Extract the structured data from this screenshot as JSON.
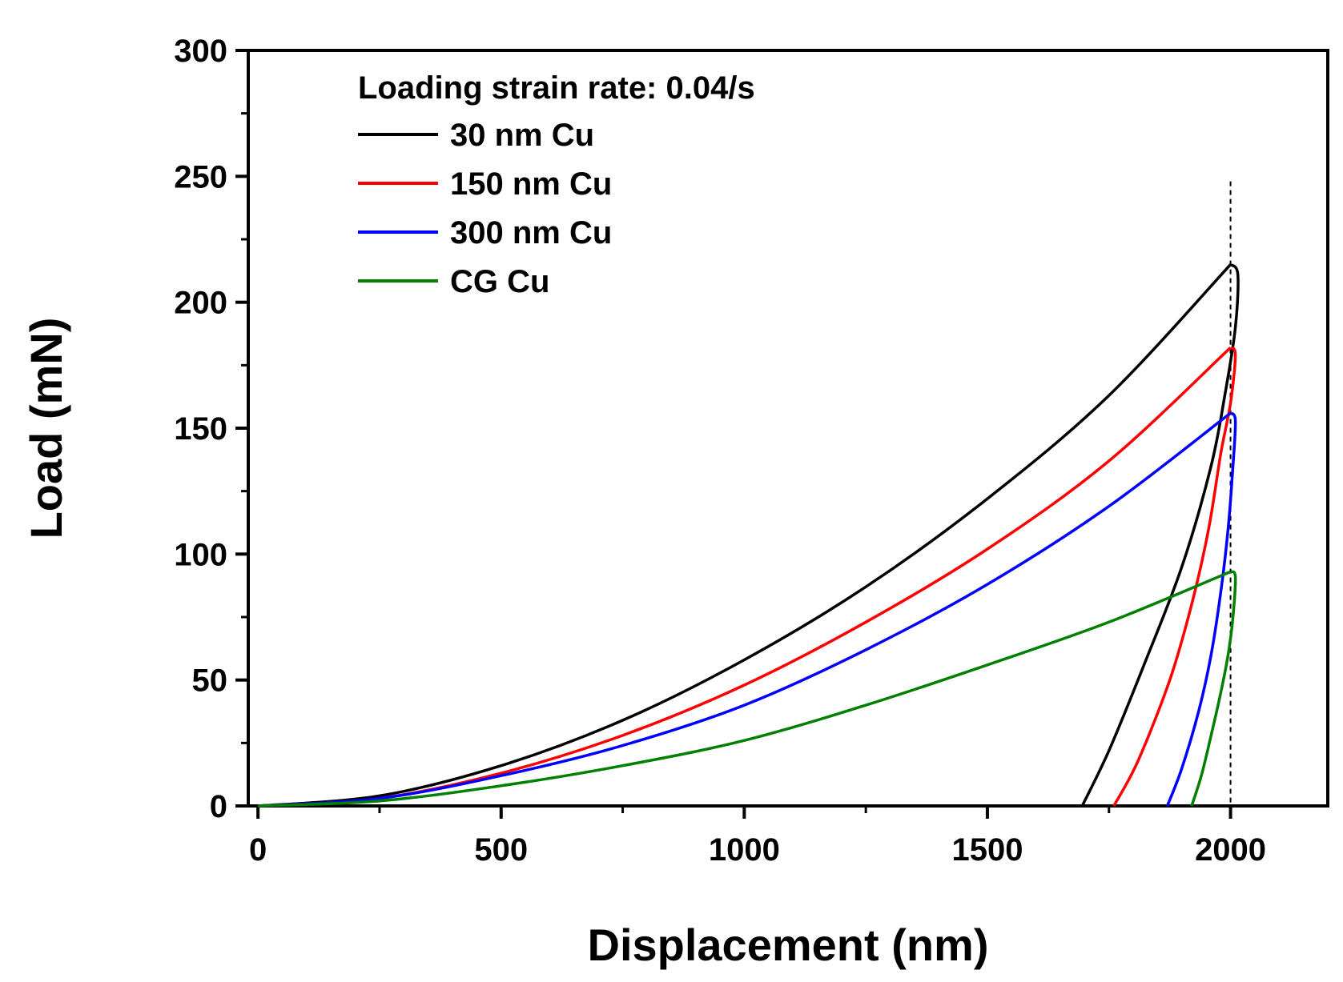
{
  "chart_data": {
    "type": "line",
    "title": "",
    "xlabel": "Displacement (nm)",
    "ylabel": "Load (mN)",
    "xlim": [
      -20,
      2200
    ],
    "ylim": [
      0,
      300
    ],
    "xticks": [
      0,
      500,
      1000,
      1500,
      2000
    ],
    "yticks": [
      0,
      50,
      100,
      150,
      200,
      250,
      300
    ],
    "legend_title": "Loading strain rate:  0.04/s",
    "legend_position": "top-left",
    "reference_line": {
      "x": 2000,
      "style": "dashed"
    },
    "series": [
      {
        "name": "30 nm Cu",
        "color": "#000000",
        "loading": {
          "x": [
            0,
            250,
            500,
            750,
            1000,
            1250,
            1500,
            1750,
            2000
          ],
          "y": [
            0,
            4,
            16,
            34,
            58,
            87,
            122,
            163,
            215
          ]
        },
        "unloading": {
          "x": [
            2000,
            2015,
            2010,
            1990,
            1960,
            1900,
            1820,
            1750,
            1695
          ],
          "y": [
            215,
            211,
            190,
            165,
            135,
            95,
            55,
            22,
            0
          ]
        }
      },
      {
        "name": "150 nm Cu",
        "color": "#ff0000",
        "loading": {
          "x": [
            0,
            250,
            500,
            750,
            1000,
            1250,
            1500,
            1750,
            2000
          ],
          "y": [
            0,
            3,
            13,
            28,
            48,
            73,
            102,
            137,
            182
          ]
        },
        "unloading": {
          "x": [
            2000,
            2010,
            2000,
            1980,
            1955,
            1920,
            1875,
            1810,
            1760
          ],
          "y": [
            182,
            179,
            160,
            140,
            110,
            80,
            50,
            18,
            0
          ]
        }
      },
      {
        "name": "300 nm Cu",
        "color": "#0000ff",
        "loading": {
          "x": [
            0,
            250,
            500,
            750,
            1000,
            1250,
            1500,
            1750,
            2000
          ],
          "y": [
            0,
            3,
            12,
            24,
            40,
            62,
            88,
            119,
            156
          ]
        },
        "unloading": {
          "x": [
            2000,
            2010,
            2005,
            1995,
            1980,
            1960,
            1935,
            1900,
            1870
          ],
          "y": [
            156,
            153,
            135,
            110,
            85,
            60,
            38,
            15,
            0
          ]
        }
      },
      {
        "name": "CG Cu",
        "color": "#008000",
        "loading": {
          "x": [
            0,
            250,
            500,
            750,
            1000,
            1250,
            1500,
            1750,
            2000
          ],
          "y": [
            0,
            2,
            8,
            16,
            26,
            40,
            56,
            73,
            93
          ]
        },
        "unloading": {
          "x": [
            2000,
            2010,
            2005,
            1995,
            1980,
            1960,
            1940,
            1920
          ],
          "y": [
            93,
            91,
            75,
            60,
            45,
            28,
            12,
            0
          ]
        }
      }
    ]
  }
}
